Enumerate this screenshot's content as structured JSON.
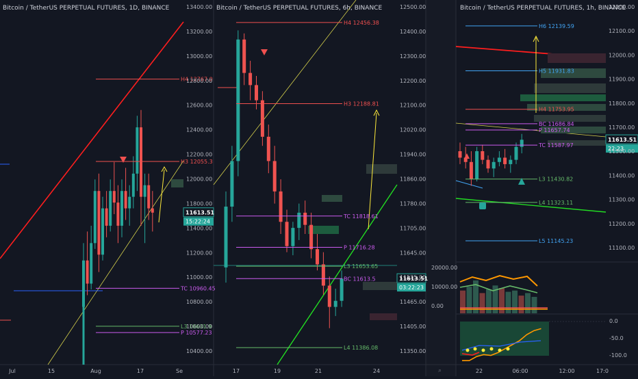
{
  "panels": [
    {
      "title": "Bitcoin / TetherUS PERPETUAL FUTURES, 1D, BINANCE",
      "price_label": "11613.51",
      "countdown": "15:22:24",
      "x_ticks": [
        "Jul",
        "15",
        "Aug",
        "17",
        "Se"
      ],
      "y_ticks": [
        "13400.00",
        "13200.00",
        "13000.00",
        "12800.00",
        "12600.00",
        "12400.00",
        "12200.00",
        "12000.00",
        "11800.00",
        "11400.00",
        "11200.00",
        "11000.00",
        "10800.00",
        "10600.00",
        "10400.00"
      ],
      "levels": [
        {
          "text": "H4 12767.0",
          "value": 12767,
          "color": "#f0504f"
        },
        {
          "text": "H3 12055.3",
          "value": 12055,
          "color": "#f0504f"
        },
        {
          "text": "TC 10960.45",
          "value": 10960,
          "color": "#cc5cf0"
        },
        {
          "text": "L3 10631.9",
          "value": 10632,
          "color": "#66bb6a"
        },
        {
          "text": "P 10577.23",
          "value": 10577,
          "color": "#cc5cf0"
        }
      ]
    },
    {
      "title": "Bitcoin / TetherUS PERPETUAL FUTURES, 6h, BINANCE",
      "price_label": "11613.51",
      "countdown": "03:22:23",
      "x_ticks": [
        "17",
        "19",
        "21",
        "24"
      ],
      "y_ticks": [
        "12500.00",
        "12400.00",
        "12300.00",
        "12200.00",
        "12100.00",
        "12020.00",
        "11940.00",
        "11860.00",
        "11780.00",
        "11705.00",
        "11645.00",
        "11525.00",
        "11465.00",
        "11405.00",
        "11350.00"
      ],
      "levels": [
        {
          "text": "H4 12456.38",
          "value": 12456,
          "color": "#f0504f"
        },
        {
          "text": "H3 12188.81",
          "value": 12189,
          "color": "#f0504f"
        },
        {
          "text": "TC 11818.61",
          "value": 11819,
          "color": "#cc5cf0"
        },
        {
          "text": "P 11716.28",
          "value": 11716,
          "color": "#cc5cf0"
        },
        {
          "text": "L3 11653.65",
          "value": 11654,
          "color": "#66bb6a"
        },
        {
          "text": "BC 11613.5",
          "value": 11613,
          "color": "#cc5cf0"
        },
        {
          "text": "L4 11386.08",
          "value": 11386,
          "color": "#66bb6a"
        }
      ]
    },
    {
      "title": "Bitcoin / TetherUS PERPETUAL FUTURES, 1h, BINANCE",
      "price_label": "11613.51",
      "countdown": "22:23",
      "x_ticks": [
        "22",
        "06:00",
        "12:00",
        "17:0"
      ],
      "y_ticks": [
        "12200.00",
        "12100.00",
        "12000.00",
        "11900.00",
        "11800.00",
        "11700.00",
        "11500.00",
        "11400.00",
        "11300.00",
        "11200.00",
        "11100.00"
      ],
      "levels": [
        {
          "text": "H6 12139.59",
          "value": 12140,
          "color": "#42a5f5"
        },
        {
          "text": "H5 11931.83",
          "value": 11932,
          "color": "#42a5f5"
        },
        {
          "text": "H4 11753.95",
          "value": 11754,
          "color": "#f0504f"
        },
        {
          "text": "BC 11686.84",
          "value": 11687,
          "color": "#cc5cf0"
        },
        {
          "text": "P 11657.74",
          "value": 11658,
          "color": "#cc5cf0"
        },
        {
          "text": "TC 11587.97",
          "value": 11588,
          "color": "#cc5cf0"
        },
        {
          "text": "L3 11430.82",
          "value": 11431,
          "color": "#66bb6a"
        },
        {
          "text": "L4 11323.11",
          "value": 11323,
          "color": "#66bb6a"
        },
        {
          "text": "L5 11145.23",
          "value": 11145,
          "color": "#42a5f5"
        }
      ],
      "volume_ticks": [
        "20000.00",
        "10000.00",
        "0.00"
      ],
      "osc_ticks": [
        "0.0",
        "-50.0",
        "-100.0"
      ]
    }
  ],
  "colors": {
    "bg": "#131722",
    "up": "#26a69a",
    "down": "#ef5350",
    "axis_text": "#b2b5be"
  },
  "chart_data": [
    {
      "type": "candlestick",
      "timeframe": "1D",
      "ylim": [
        10300,
        13450
      ],
      "candles": [
        [
          10800,
          11350,
          10700,
          11200
        ],
        [
          11200,
          11450,
          10900,
          11000
        ],
        [
          11000,
          11500,
          10950,
          11350
        ],
        [
          11350,
          11900,
          11300,
          11800
        ],
        [
          11800,
          11950,
          11100,
          11250
        ],
        [
          11250,
          11750,
          11200,
          11650
        ],
        [
          11650,
          11800,
          11400,
          11500
        ],
        [
          11500,
          11900,
          11450,
          11800
        ],
        [
          11800,
          12050,
          11600,
          11700
        ],
        [
          11700,
          11850,
          11350,
          11500
        ],
        [
          11500,
          11900,
          11400,
          11800
        ],
        [
          11800,
          12000,
          11550,
          11650
        ],
        [
          11650,
          11850,
          11500,
          11750
        ],
        [
          11750,
          12100,
          11650,
          11950
        ],
        [
          11950,
          12450,
          11800,
          12350
        ],
        [
          12350,
          12500,
          11500,
          11750
        ],
        [
          11750,
          11950,
          11350,
          11850
        ],
        [
          11850,
          11950,
          11550,
          11650
        ],
        [
          11650,
          11800,
          11450,
          11613
        ]
      ]
    },
    {
      "type": "candlestick",
      "timeframe": "6h",
      "ylim": [
        11330,
        12530
      ],
      "candles": [
        [
          11650,
          11900,
          11600,
          11850
        ],
        [
          11850,
          12050,
          11800,
          12000
        ],
        [
          12000,
          12430,
          11950,
          12400
        ],
        [
          12400,
          12420,
          12250,
          12290
        ],
        [
          12290,
          12330,
          12200,
          12250
        ],
        [
          12250,
          12280,
          12170,
          12200
        ],
        [
          12200,
          12230,
          12050,
          12080
        ],
        [
          12080,
          12120,
          11960,
          12000
        ],
        [
          12000,
          12050,
          11860,
          11900
        ],
        [
          11900,
          11940,
          11760,
          11800
        ],
        [
          11800,
          11840,
          11700,
          11720
        ],
        [
          11720,
          11800,
          11690,
          11780
        ],
        [
          11780,
          11860,
          11740,
          11830
        ],
        [
          11830,
          11870,
          11760,
          11790
        ],
        [
          11790,
          11830,
          11680,
          11710
        ],
        [
          11710,
          11760,
          11640,
          11660
        ],
        [
          11660,
          11700,
          11560,
          11590
        ],
        [
          11590,
          11620,
          11450,
          11520
        ],
        [
          11520,
          11580,
          11490,
          11540
        ],
        [
          11540,
          11640,
          11520,
          11613
        ]
      ]
    },
    {
      "type": "candlestick",
      "timeframe": "1h",
      "ylim": [
        11050,
        12260
      ],
      "candles": [
        [
          11560,
          11600,
          11500,
          11530
        ],
        [
          11530,
          11580,
          11480,
          11510
        ],
        [
          11510,
          11560,
          11400,
          11430
        ],
        [
          11430,
          11580,
          11420,
          11560
        ],
        [
          11560,
          11590,
          11500,
          11520
        ],
        [
          11520,
          11540,
          11460,
          11480
        ],
        [
          11480,
          11530,
          11440,
          11510
        ],
        [
          11510,
          11560,
          11490,
          11530
        ],
        [
          11530,
          11570,
          11480,
          11500
        ],
        [
          11500,
          11540,
          11460,
          11520
        ],
        [
          11520,
          11600,
          11500,
          11580
        ],
        [
          11580,
          11640,
          11550,
          11613
        ]
      ],
      "volume": {
        "ylim": [
          0,
          20000
        ],
        "values": [
          9000,
          10500,
          13000,
          8000,
          9500,
          11000,
          10000,
          8500,
          9000,
          7000,
          8000,
          6500
        ]
      },
      "oscillator": {
        "ylim": [
          -100,
          20
        ],
        "values": [
          -95,
          -95,
          -85,
          -80,
          -82,
          -75,
          -65,
          -55,
          -45,
          -30,
          -20,
          -15
        ]
      }
    }
  ]
}
